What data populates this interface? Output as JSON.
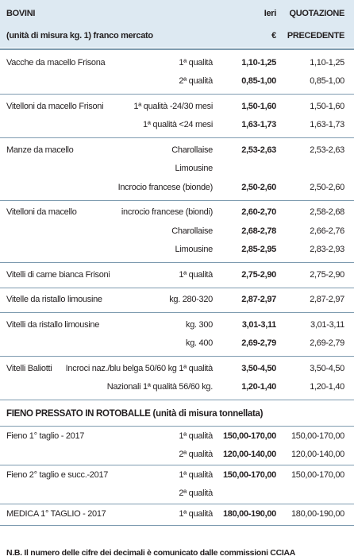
{
  "header": {
    "title": "BOVINI",
    "subtitle": "(unità di misura kg. 1) franco mercato",
    "col_ieri": "Ieri",
    "col_euro": "€",
    "col_quot": "QUOTAZIONE",
    "col_prec": "PRECEDENTE"
  },
  "bovini": [
    {
      "name": "Vacche da macello Frisona",
      "rows": [
        {
          "quality": "1ª qualità",
          "ieri": "1,10-1,25",
          "prec": "1,10-1,25"
        },
        {
          "quality": "2ª qualità",
          "ieri": "0,85-1,00",
          "prec": "0,85-1,00"
        }
      ]
    },
    {
      "name": "Vitelloni da macello Frisoni",
      "rows": [
        {
          "quality": "1ª qualità -24/30 mesi",
          "ieri": "1,50-1,60",
          "prec": "1,50-1,60"
        },
        {
          "quality": "1ª qualità <24 mesi",
          "ieri": "1,63-1,73",
          "prec": "1,63-1,73"
        }
      ]
    },
    {
      "name": "Manze da macello",
      "rows": [
        {
          "quality": "Charollaise",
          "ieri": "2,53-2,63",
          "prec": "2,53-2,63"
        },
        {
          "quality": "Limousine"
        },
        {
          "quality": "Incrocio francese (bionde)",
          "ieri": "2,50-2,60",
          "prec": "2,50-2,60"
        }
      ]
    },
    {
      "name": "Vitelloni da macello",
      "rows": [
        {
          "quality": "incrocio francese (biondi)",
          "ieri": "2,60-2,70",
          "prec": "2,58-2,68"
        },
        {
          "quality": "Charollaise",
          "ieri": "2,68-2,78",
          "prec": "2,66-2,76"
        },
        {
          "quality": "Limousine",
          "ieri": "2,85-2,95",
          "prec": "2,83-2,93"
        }
      ]
    },
    {
      "name": "Vitelli di carne bianca Frisoni",
      "rows": [
        {
          "quality": "1ª qualità",
          "ieri": "2,75-2,90",
          "prec": "2,75-2,90"
        }
      ]
    },
    {
      "name": "Vitelle da ristallo limousine",
      "rows": [
        {
          "quality": "kg. 280-320",
          "ieri": "2,87-2,97",
          "prec": "2,87-2,97"
        }
      ]
    },
    {
      "name": "Vitelli da ristallo limousine",
      "rows": [
        {
          "quality": "kg. 300",
          "ieri": "3,01-3,11",
          "prec": "3,01-3,11"
        },
        {
          "quality": "kg. 400",
          "ieri": "2,69-2,79",
          "prec": "2,69-2,79"
        }
      ]
    },
    {
      "name": "Vitelli Baliotti",
      "rows": [
        {
          "quality": "Incroci naz./blu belga 50/60 kg 1ª qualità",
          "ieri": "3,50-4,50",
          "prec": "3,50-4,50"
        },
        {
          "quality": "Nazionali 1ª qualità 56/60 kg.",
          "ieri": "1,20-1,40",
          "prec": "1,20-1,40"
        }
      ]
    }
  ],
  "fieno_title": "FIENO PRESSATO IN ROTOBALLE (unità di misura tonnellata)",
  "fieno": [
    {
      "name": "Fieno 1° taglio - 2017",
      "rows": [
        {
          "quality": "1ª qualità",
          "ieri": "150,00-170,00",
          "prec": "150,00-170,00"
        },
        {
          "quality": "2ª qualità",
          "ieri": "120,00-140,00",
          "prec": "120,00-140,00"
        }
      ]
    },
    {
      "name": "Fieno 2° taglio e succ.-2017",
      "rows": [
        {
          "quality": "1ª qualità",
          "ieri": "150,00-170,00",
          "prec": "150,00-170,00"
        },
        {
          "quality": "2ª qualità"
        }
      ]
    },
    {
      "name": "MEDICA 1° TAGLIO - 2017",
      "rows": [
        {
          "quality": "1ª qualità",
          "ieri": "180,00-190,00",
          "prec": "180,00-190,00"
        }
      ]
    }
  ],
  "note": "N.B. Il numero delle cifre dei decimali è comunicato dalle commissioni CCIAA"
}
